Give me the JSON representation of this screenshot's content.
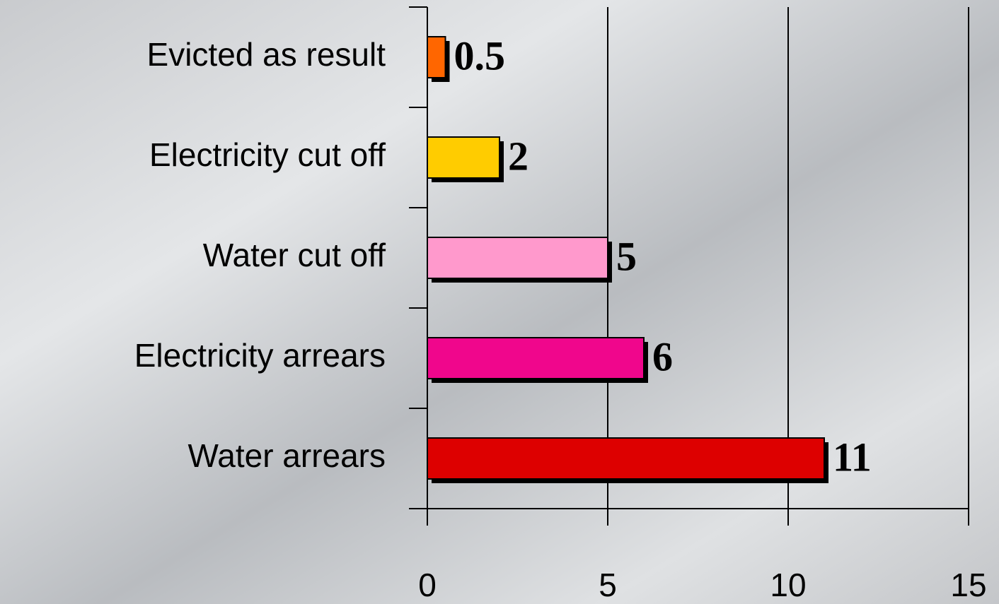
{
  "chart_data": {
    "type": "barh",
    "categories": [
      "Evicted as result",
      "Electricity cut off",
      "Water cut off",
      "Electricity arrears",
      "Water arrears"
    ],
    "values": [
      0.5,
      2,
      5,
      6,
      11
    ],
    "colors": [
      "#ff6600",
      "#ffcc00",
      "#ff99cc",
      "#f0068c",
      "#dd0000"
    ],
    "xlim": [
      0,
      15
    ],
    "xticks": [
      0,
      5,
      10,
      15
    ],
    "grid": true
  }
}
